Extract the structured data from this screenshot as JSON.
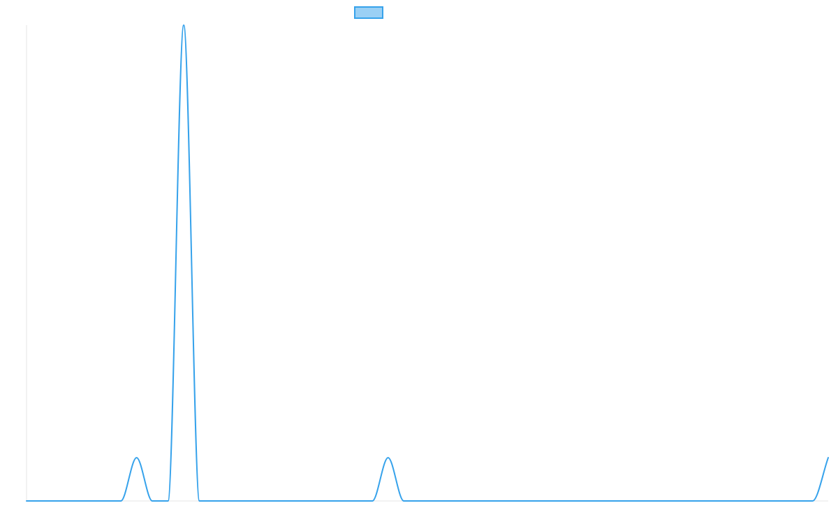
{
  "chart_data": {
    "type": "line",
    "title": "",
    "xlabel": "",
    "ylabel": "",
    "grid": false,
    "legend": "top-center",
    "x": [
      0,
      1,
      2,
      3,
      4,
      5,
      6,
      7,
      8,
      9,
      10,
      11,
      12,
      13,
      14,
      15,
      16,
      17,
      18,
      19,
      20,
      21,
      22,
      23,
      24,
      25,
      26,
      27,
      28,
      29,
      30,
      31,
      32,
      33,
      34,
      35,
      36,
      37,
      38,
      39,
      40,
      41,
      42,
      43,
      44,
      45,
      46,
      47,
      48,
      49,
      50,
      51
    ],
    "xlim": [
      0,
      51
    ],
    "ylim": [
      0,
      11
    ],
    "series": [
      {
        "name": "",
        "color": "#36a2eb",
        "fill": "#9ad0f5",
        "values": [
          0,
          0,
          0,
          0,
          0,
          0,
          0,
          1,
          0,
          0,
          11,
          0,
          0,
          0,
          0,
          0,
          0,
          0,
          0,
          0,
          0,
          0,
          0,
          1,
          0,
          0,
          0,
          0,
          0,
          0,
          0,
          0,
          0,
          0,
          0,
          0,
          0,
          0,
          0,
          0,
          0,
          0,
          0,
          0,
          0,
          0,
          0,
          0,
          0,
          0,
          0,
          1
        ]
      }
    ]
  }
}
